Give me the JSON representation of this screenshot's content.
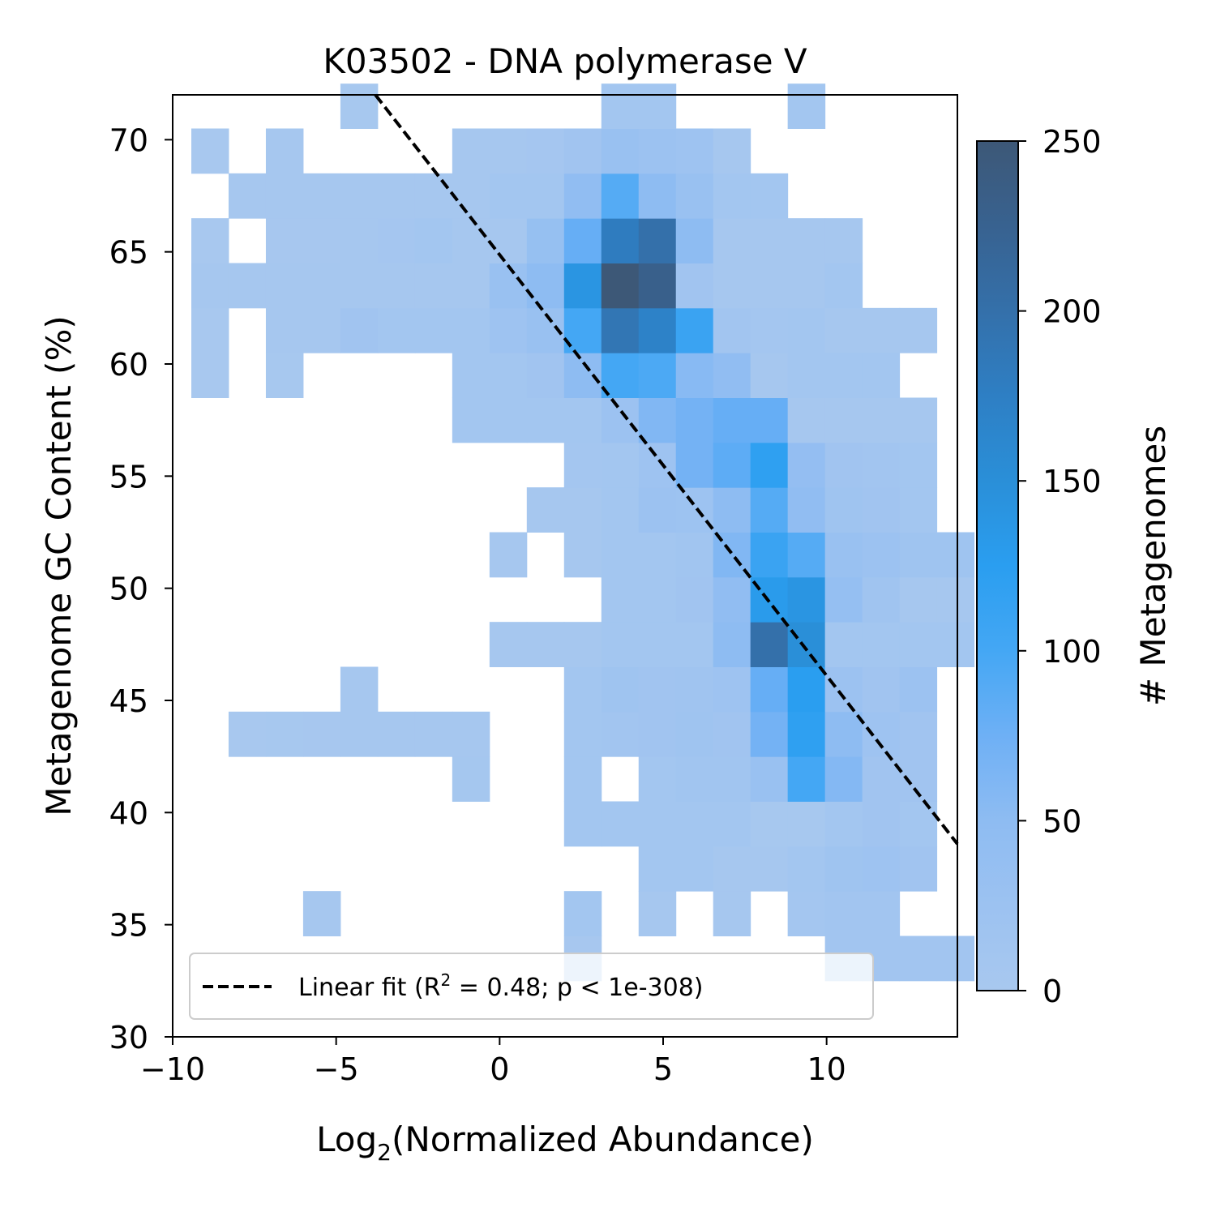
{
  "chart_data": {
    "type": "heatmap",
    "title": "K03502 - DNA polymerase V",
    "xlabel_main": "Log",
    "xlabel_sub": "2",
    "xlabel_rest": "(Normalized Abundance)",
    "ylabel": "Metagenome GC Content (%)",
    "xlim": [
      -10,
      14
    ],
    "ylim": [
      30,
      72
    ],
    "x_ticks": [
      -10,
      -5,
      0,
      5,
      10
    ],
    "x_tick_labels": [
      "−10",
      "−5",
      "0",
      "5",
      "10"
    ],
    "y_ticks": [
      30,
      35,
      40,
      45,
      50,
      55,
      60,
      65,
      70
    ],
    "y_tick_labels": [
      "30",
      "35",
      "40",
      "45",
      "50",
      "55",
      "60",
      "65",
      "70"
    ],
    "grid": false,
    "bins": {
      "x_start": -9.43,
      "x_step": 1.14,
      "x_count": 21,
      "y_start": 32.5,
      "y_step": 2.0,
      "y_count": 20
    },
    "counts": [
      [
        0,
        0,
        0,
        0,
        0,
        0,
        0,
        0,
        0,
        0,
        3,
        0,
        0,
        0,
        0,
        0,
        0,
        12,
        12,
        12,
        12
      ],
      [
        0,
        0,
        0,
        4,
        0,
        0,
        0,
        0,
        0,
        0,
        10,
        0,
        4,
        0,
        4,
        0,
        8,
        13,
        12,
        0,
        0
      ],
      [
        0,
        0,
        0,
        0,
        0,
        0,
        0,
        0,
        0,
        0,
        0,
        0,
        10,
        10,
        5,
        4,
        10,
        18,
        20,
        15,
        0
      ],
      [
        0,
        0,
        0,
        0,
        0,
        0,
        0,
        0,
        0,
        0,
        10,
        10,
        10,
        10,
        10,
        2,
        2,
        10,
        15,
        10,
        0
      ],
      [
        0,
        0,
        0,
        0,
        0,
        0,
        0,
        6,
        0,
        0,
        10,
        0,
        10,
        14,
        14,
        30,
        100,
        58,
        15,
        15,
        0
      ],
      [
        0,
        1,
        2,
        3,
        5,
        5,
        4,
        5,
        0,
        0,
        10,
        12,
        15,
        18,
        15,
        70,
        120,
        50,
        20,
        15,
        0
      ],
      [
        0,
        0,
        0,
        0,
        5,
        0,
        0,
        0,
        0,
        0,
        10,
        18,
        15,
        17,
        20,
        80,
        125,
        25,
        15,
        25,
        0
      ],
      [
        0,
        0,
        0,
        0,
        0,
        0,
        0,
        0,
        5,
        5,
        5,
        10,
        10,
        10,
        50,
        200,
        150,
        10,
        10,
        10,
        10
      ],
      [
        0,
        0,
        0,
        0,
        0,
        0,
        0,
        0,
        0,
        0,
        0,
        10,
        10,
        15,
        45,
        130,
        140,
        38,
        16,
        5,
        5
      ],
      [
        0,
        0,
        0,
        0,
        0,
        0,
        0,
        0,
        5,
        0,
        5,
        10,
        10,
        14,
        60,
        110,
        90,
        30,
        24,
        18,
        18
      ],
      [
        0,
        0,
        0,
        0,
        0,
        0,
        0,
        0,
        0,
        5,
        5,
        10,
        25,
        22,
        50,
        90,
        45,
        18,
        15,
        10,
        0
      ],
      [
        0,
        0,
        0,
        0,
        0,
        0,
        0,
        0,
        0,
        0,
        8,
        10,
        20,
        70,
        85,
        120,
        40,
        15,
        12,
        10,
        0
      ],
      [
        0,
        0,
        0,
        0,
        0,
        0,
        0,
        10,
        10,
        10,
        10,
        25,
        60,
        70,
        80,
        80,
        5,
        5,
        5,
        5,
        0
      ],
      [
        1,
        0,
        2,
        0,
        0,
        0,
        0,
        10,
        10,
        15,
        50,
        100,
        95,
        55,
        45,
        5,
        10,
        10,
        10,
        0,
        0
      ],
      [
        1,
        0,
        5,
        5,
        15,
        10,
        10,
        10,
        20,
        30,
        100,
        190,
        170,
        110,
        12,
        8,
        10,
        5,
        5,
        5,
        0
      ],
      [
        5,
        5,
        5,
        5,
        5,
        5,
        5,
        5,
        30,
        50,
        140,
        250,
        230,
        15,
        5,
        5,
        5,
        10,
        0,
        0,
        0
      ],
      [
        1,
        0,
        3,
        3,
        4,
        7,
        10,
        5,
        5,
        35,
        80,
        180,
        200,
        50,
        5,
        5,
        5,
        5,
        0,
        0,
        0
      ],
      [
        0,
        5,
        5,
        5,
        5,
        5,
        5,
        5,
        10,
        10,
        45,
        90,
        50,
        30,
        10,
        10,
        0,
        0,
        0,
        0,
        0
      ],
      [
        1,
        0,
        5,
        0,
        0,
        0,
        0,
        5,
        5,
        7,
        15,
        30,
        25,
        20,
        5,
        0,
        0,
        0,
        0,
        0,
        0
      ],
      [
        0,
        0,
        0,
        0,
        2,
        0,
        0,
        0,
        0,
        0,
        0,
        10,
        10,
        0,
        0,
        0,
        10,
        0,
        0,
        0,
        0
      ]
    ],
    "linear_fit": {
      "x": [
        -3.8,
        14.0
      ],
      "y": [
        72.0,
        38.6
      ],
      "style": "dashed",
      "color": "#000000"
    },
    "legend": {
      "location": "lower-left",
      "label_prefix": "Linear fit (R",
      "label_sup": "2",
      "label_suffix": " = 0.48; p < 1e-308)"
    },
    "colorbar": {
      "label": "# Metagenomes",
      "min": 0,
      "max": 250,
      "ticks": [
        0,
        50,
        100,
        150,
        200,
        250
      ],
      "tick_labels": [
        "0",
        "50",
        "100",
        "150",
        "200",
        "250"
      ],
      "color_stops": [
        "#a8c8ef",
        "#9cc2f1",
        "#8ebcf2",
        "#6eb0f5",
        "#44a7f4",
        "#2a9ef0",
        "#2a8fd8",
        "#2e7fc4",
        "#3470aa",
        "#386290",
        "#3d5877"
      ]
    }
  }
}
